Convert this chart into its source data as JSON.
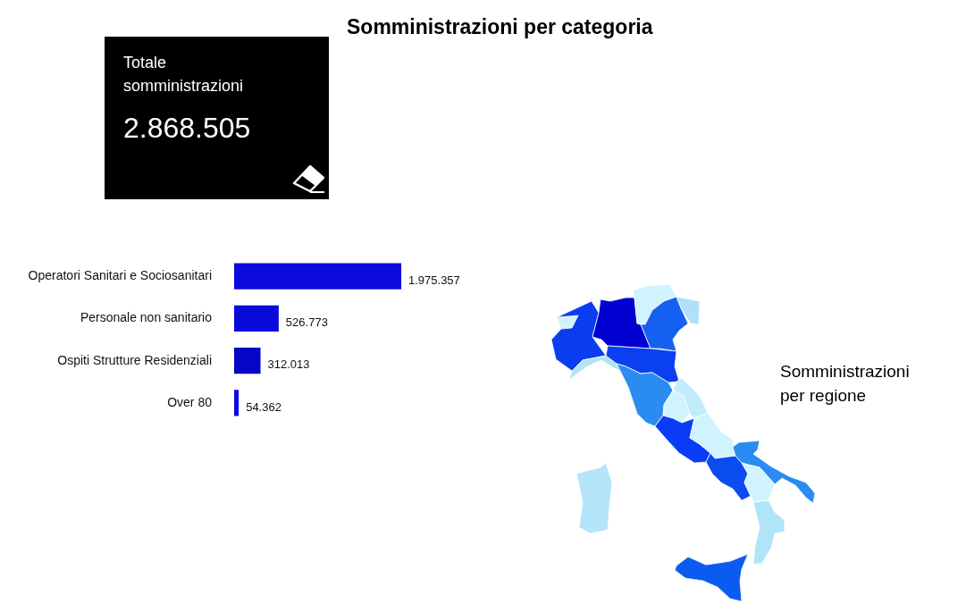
{
  "chart_data": [
    {
      "type": "bar",
      "orientation": "horizontal",
      "title": "Somministrazioni per categoria",
      "categories": [
        "Operatori Sanitari e Sociosanitari",
        "Personale non sanitario",
        "Ospiti Strutture Residenziali",
        "Over 80"
      ],
      "values": [
        1975357,
        526773,
        312013,
        54362
      ],
      "colors": [
        "#0b0be0",
        "#0a0ad8",
        "#0606c6",
        "#0a0ae6"
      ],
      "value_labels": [
        "1.975.357",
        "526.773",
        "312.013",
        "54.362"
      ],
      "tick_labels": "y"
    },
    {
      "type": "other",
      "title": "Totale somministrazioni",
      "annotations": [
        "2.868.505"
      ]
    },
    {
      "type": "other",
      "title": "Somministrazioni per regione"
    }
  ]
}
